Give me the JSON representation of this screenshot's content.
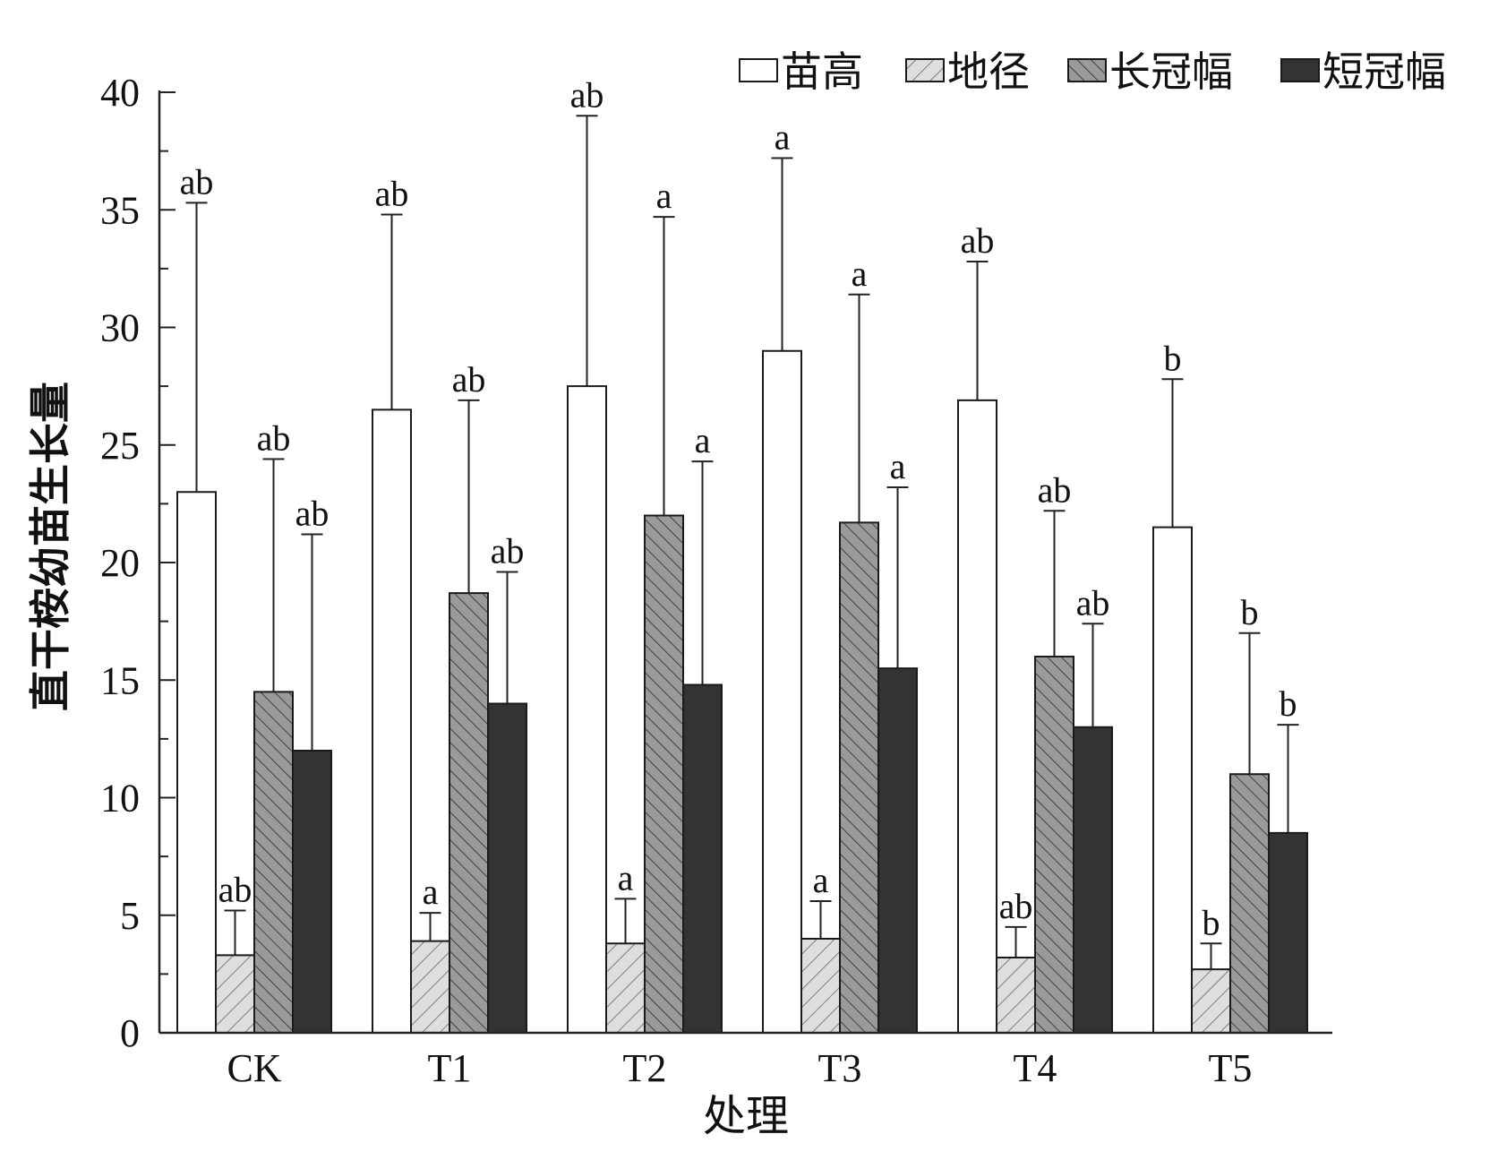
{
  "chart_data": {
    "type": "bar",
    "xlabel": "处理",
    "ylabel": "直干桉幼苗生长量",
    "ylim": [
      0,
      40
    ],
    "yticks": [
      0,
      5,
      10,
      15,
      20,
      25,
      30,
      35,
      40
    ],
    "grid": false,
    "legend_position": "top-right",
    "categories": [
      "CK",
      "T1",
      "T2",
      "T3",
      "T4",
      "T5"
    ],
    "series": [
      {
        "name": "苗高",
        "fill": "white",
        "values": [
          23.0,
          26.5,
          27.5,
          29.0,
          26.9,
          21.5
        ],
        "errors": [
          12.3,
          8.3,
          11.5,
          8.2,
          5.9,
          6.3
        ],
        "labels": [
          "ab",
          "ab",
          "ab",
          "a",
          "ab",
          "b"
        ]
      },
      {
        "name": "地径",
        "fill": "diag-light",
        "values": [
          3.3,
          3.9,
          3.8,
          4.0,
          3.2,
          2.7
        ],
        "errors": [
          1.9,
          1.2,
          1.9,
          1.6,
          1.3,
          1.1
        ],
        "labels": [
          "ab",
          "a",
          "a",
          "a",
          "ab",
          "b"
        ]
      },
      {
        "name": "长冠幅",
        "fill": "diag-medium",
        "values": [
          14.5,
          18.7,
          22.0,
          21.7,
          16.0,
          11.0
        ],
        "errors": [
          9.9,
          8.2,
          12.7,
          9.7,
          6.2,
          6.0
        ],
        "labels": [
          "ab",
          "ab",
          "a",
          "a",
          "ab",
          "b"
        ]
      },
      {
        "name": "短冠幅",
        "fill": "dark",
        "values": [
          12.0,
          14.0,
          14.8,
          15.5,
          13.0,
          8.5
        ],
        "errors": [
          9.2,
          5.6,
          9.5,
          7.7,
          4.4,
          4.6
        ],
        "labels": [
          "ab",
          "ab",
          "a",
          "a",
          "ab",
          "b"
        ]
      }
    ]
  },
  "colors": {
    "axis": "#222222",
    "bar_outline": "#1a1a1a",
    "white_fill": "#ffffff",
    "diag_light_bg": "#dedede",
    "diag_light_line": "#666666",
    "diag_medium_bg": "#9a9a9a",
    "diag_medium_line": "#2a2a2a",
    "dark_fill": "#333333"
  }
}
